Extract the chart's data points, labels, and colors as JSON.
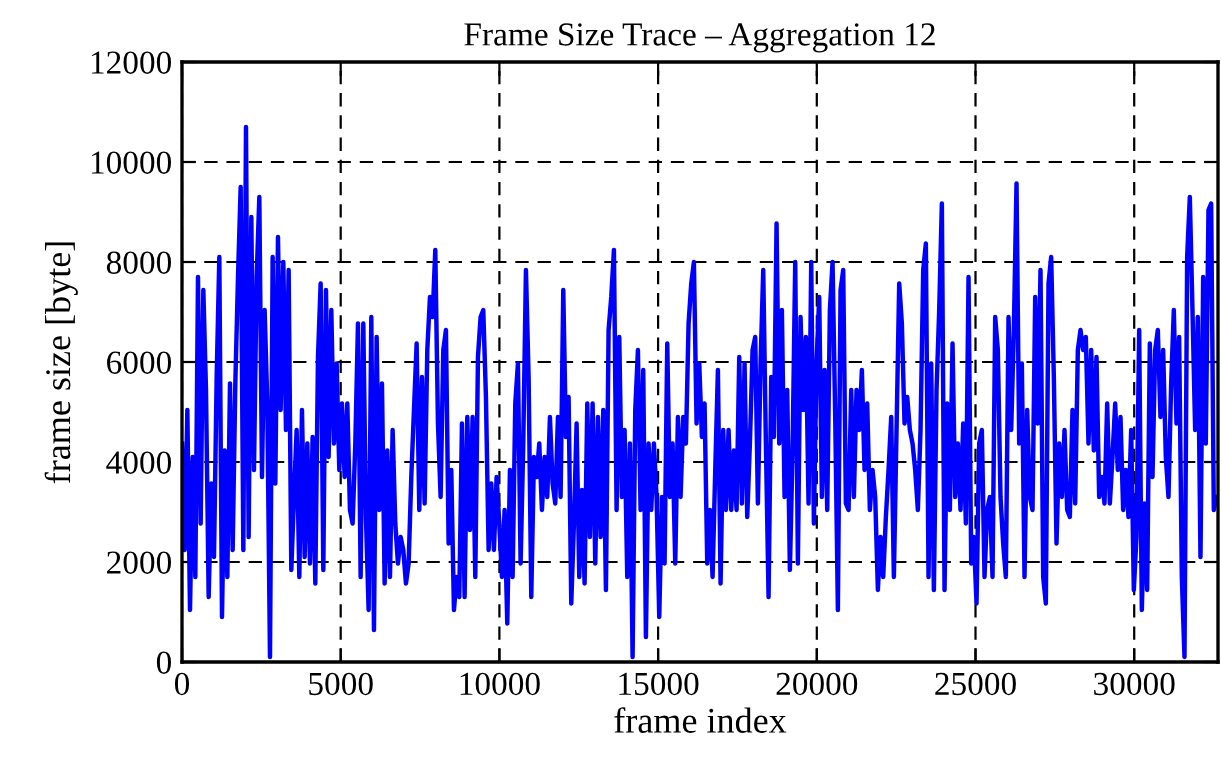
{
  "chart_data": {
    "type": "line",
    "title": "Frame Size Trace – Aggregation 12",
    "xlabel": "frame index",
    "ylabel": "frame size [byte]",
    "xlim": [
      0,
      32640
    ],
    "xticks": [
      0,
      5000,
      10000,
      15000,
      20000,
      25000,
      30000
    ],
    "ylim": [
      0,
      12000
    ],
    "yticks": [
      0,
      2000,
      4000,
      6000,
      8000,
      10000,
      12000
    ],
    "grid": true,
    "marker": "none",
    "line_style": "solid",
    "series": [
      {
        "color": "#0000ff",
        "x": [
          0,
          84,
          168,
          252,
          336,
          420,
          504,
          588,
          672,
          756,
          840,
          924,
          1008,
          1092,
          1176,
          1260,
          1344,
          1428,
          1512,
          1596,
          1680,
          1764,
          1848,
          1932,
          2016,
          2100,
          2184,
          2268,
          2352,
          2436,
          2520,
          2604,
          2688,
          2772,
          2856,
          2940,
          3024,
          3108,
          3192,
          3276,
          3360,
          3444,
          3528,
          3612,
          3696,
          3780,
          3864,
          3948,
          4032,
          4116,
          4200,
          4284,
          4368,
          4452,
          4536,
          4620,
          4704,
          4788,
          4872,
          4956,
          5040,
          5124,
          5208,
          5292,
          5376,
          5460,
          5544,
          5628,
          5712,
          5796,
          5880,
          5964,
          6048,
          6132,
          6216,
          6300,
          6384,
          6468,
          6552,
          6636,
          6720,
          6804,
          6888,
          6972,
          7056,
          7140,
          7224,
          7308,
          7392,
          7476,
          7560,
          7644,
          7728,
          7812,
          7896,
          7980,
          8064,
          8148,
          8232,
          8316,
          8400,
          8484,
          8568,
          8652,
          8736,
          8820,
          8904,
          8988,
          9072,
          9156,
          9240,
          9324,
          9408,
          9492,
          9576,
          9660,
          9744,
          9828,
          9912,
          9996,
          10080,
          10164,
          10248,
          10332,
          10416,
          10500,
          10584,
          10668,
          10752,
          10836,
          10920,
          11004,
          11088,
          11172,
          11256,
          11340,
          11424,
          11508,
          11592,
          11676,
          11760,
          11844,
          11928,
          12012,
          12096,
          12180,
          12264,
          12348,
          12432,
          12516,
          12600,
          12684,
          12768,
          12852,
          12936,
          13020,
          13104,
          13188,
          13272,
          13356,
          13440,
          13524,
          13608,
          13692,
          13776,
          13860,
          13944,
          14028,
          14112,
          14196,
          14280,
          14364,
          14448,
          14532,
          14616,
          14700,
          14784,
          14868,
          14952,
          15036,
          15120,
          15204,
          15288,
          15372,
          15456,
          15540,
          15624,
          15708,
          15792,
          15876,
          15960,
          16044,
          16128,
          16212,
          16296,
          16380,
          16464,
          16548,
          16632,
          16716,
          16800,
          16884,
          16968,
          17052,
          17136,
          17220,
          17304,
          17388,
          17472,
          17556,
          17640,
          17724,
          17808,
          17892,
          17976,
          18060,
          18144,
          18228,
          18312,
          18396,
          18480,
          18564,
          18648,
          18732,
          18816,
          18900,
          18984,
          19068,
          19152,
          19236,
          19320,
          19404,
          19488,
          19572,
          19656,
          19740,
          19824,
          19908,
          19992,
          20076,
          20160,
          20244,
          20328,
          20412,
          20496,
          20580,
          20664,
          20748,
          20832,
          20916,
          21000,
          21084,
          21168,
          21252,
          21336,
          21420,
          21504,
          21588,
          21672,
          21756,
          21840,
          21924,
          22008,
          22092,
          22176,
          22260,
          22344,
          22428,
          22512,
          22596,
          22680,
          22764,
          22848,
          22932,
          23016,
          23100,
          23184,
          23268,
          23352,
          23436,
          23520,
          23604,
          23688,
          23772,
          23856,
          23940,
          24024,
          24108,
          24192,
          24276,
          24360,
          24444,
          24528,
          24612,
          24696,
          24780,
          24864,
          24948,
          25032,
          25116,
          25200,
          25284,
          25368,
          25452,
          25536,
          25620,
          25704,
          25788,
          25872,
          25956,
          26040,
          26124,
          26208,
          26292,
          26376,
          26460,
          26544,
          26628,
          26712,
          26796,
          26880,
          26964,
          27048,
          27132,
          27216,
          27300,
          27384,
          27468,
          27552,
          27636,
          27720,
          27804,
          27888,
          27972,
          28056,
          28140,
          28224,
          28308,
          28392,
          28476,
          28560,
          28644,
          28728,
          28812,
          28896,
          28980,
          29064,
          29148,
          29232,
          29316,
          29400,
          29484,
          29568,
          29652,
          29736,
          29820,
          29904,
          29988,
          30072,
          30156,
          30240,
          30324,
          30408,
          30492,
          30576,
          30660,
          30744,
          30828,
          30912,
          30996,
          31080,
          31164,
          31248,
          31332,
          31416,
          31500,
          31584,
          31668,
          31752,
          31836,
          31920,
          32004,
          32088,
          32172,
          32256,
          32340,
          32424,
          32508,
          32592
        ],
        "values": [
          4370,
          2240,
          5040,
          1040,
          4100,
          1700,
          7700,
          2770,
          7440,
          5440,
          1300,
          3570,
          2100,
          5700,
          8100,
          900,
          4230,
          1700,
          5570,
          2240,
          5570,
          7700,
          9500,
          2240,
          10700,
          2500,
          8900,
          3840,
          7700,
          9300,
          3700,
          7040,
          5170,
          100,
          8100,
          3570,
          8500,
          5040,
          8000,
          4640,
          7840,
          1840,
          3300,
          4640,
          1700,
          5040,
          2100,
          4370,
          1970,
          4500,
          1570,
          6100,
          7570,
          1840,
          7440,
          4100,
          7040,
          4370,
          5970,
          3840,
          5170,
          3700,
          5170,
          3040,
          2770,
          4370,
          6770,
          1700,
          6770,
          2900,
          1040,
          6900,
          640,
          6500,
          3040,
          5570,
          1570,
          4230,
          1700,
          4640,
          2770,
          1970,
          2500,
          2240,
          1570,
          1970,
          3700,
          5040,
          6370,
          3040,
          5700,
          3170,
          6240,
          7300,
          6900,
          8240,
          4770,
          3300,
          6240,
          6640,
          2370,
          3840,
          1040,
          1700,
          1300,
          4770,
          1300,
          4900,
          2640,
          4900,
          1700,
          6100,
          6900,
          7040,
          5300,
          2240,
          3570,
          2240,
          3700,
          2770,
          1700,
          3040,
          770,
          3840,
          1700,
          5170,
          5970,
          1970,
          4370,
          7840,
          5700,
          1300,
          4100,
          3700,
          4370,
          3040,
          4100,
          3300,
          4900,
          3570,
          3170,
          4900,
          3300,
          7440,
          4500,
          5300,
          1170,
          2770,
          4770,
          1700,
          3440,
          1570,
          5170,
          2500,
          5170,
          1970,
          4900,
          2500,
          5040,
          1440,
          6640,
          7300,
          8240,
          3040,
          6500,
          3300,
          4640,
          1700,
          4370,
          100,
          5040,
          6240,
          3040,
          5840,
          500,
          4370,
          3040,
          4370,
          3300,
          900,
          3300,
          1970,
          6370,
          3300,
          4370,
          1970,
          4900,
          3300,
          4900,
          4370,
          6770,
          7570,
          8000,
          4770,
          5970,
          4500,
          5170,
          1970,
          3040,
          1700,
          3840,
          5840,
          1570,
          4640,
          3040,
          4640,
          3040,
          4230,
          3040,
          6100,
          3170,
          5970,
          2900,
          4370,
          6240,
          6500,
          3170,
          5970,
          7840,
          4370,
          1300,
          5700,
          4500,
          8770,
          4370,
          7040,
          3300,
          5440,
          1840,
          4230,
          8000,
          1970,
          6900,
          5040,
          6500,
          3170,
          8000,
          2770,
          5970,
          7300,
          3300,
          5840,
          3040,
          7040,
          8000,
          4900,
          1040,
          7440,
          7840,
          3170,
          3040,
          5440,
          3300,
          5440,
          4640,
          5840,
          3840,
          5170,
          3040,
          3840,
          3300,
          1440,
          2500,
          1700,
          2900,
          3840,
          4900,
          1700,
          4640,
          7570,
          6770,
          4770,
          5300,
          4640,
          4370,
          3840,
          3040,
          4640,
          7840,
          8370,
          1700,
          5970,
          1440,
          5440,
          7040,
          9170,
          1440,
          5170,
          3040,
          6370,
          3300,
          4370,
          3040,
          4770,
          2770,
          7700,
          1970,
          2500,
          1170,
          4370,
          4640,
          1700,
          3040,
          3300,
          1700,
          6900,
          6240,
          3300,
          2370,
          1700,
          6900,
          4640,
          6640,
          9570,
          4370,
          5970,
          1700,
          5040,
          3300,
          3040,
          7300,
          4770,
          7840,
          1700,
          1170,
          7570,
          8100,
          5700,
          2370,
          4370,
          3300,
          4640,
          3040,
          2900,
          5040,
          3170,
          6240,
          6640,
          6240,
          6500,
          4370,
          6240,
          4230,
          6100,
          3300,
          3700,
          3170,
          5170,
          3170,
          4100,
          5170,
          3840,
          4900,
          3040,
          3840,
          2900,
          4640,
          1440,
          2500,
          6640,
          1040,
          3170,
          1440,
          6370,
          3700,
          6240,
          6640,
          4900,
          6240,
          4100,
          3300,
          5570,
          7040,
          4770,
          6500,
          1700,
          100,
          8100,
          9300,
          7040,
          4640,
          6900,
          2100,
          7700,
          4370,
          9040,
          9170,
          3040,
          3300
        ]
      }
    ]
  }
}
